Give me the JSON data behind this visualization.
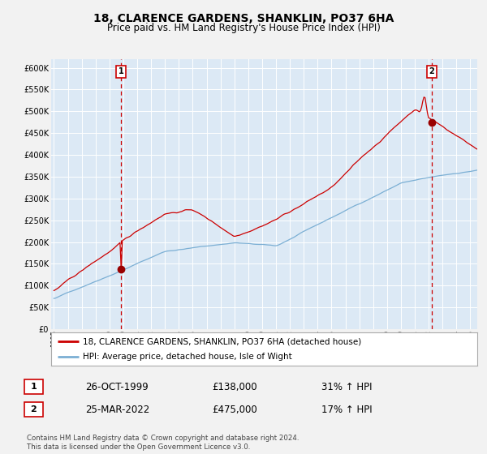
{
  "title": "18, CLARENCE GARDENS, SHANKLIN, PO37 6HA",
  "subtitle": "Price paid vs. HM Land Registry's House Price Index (HPI)",
  "title_fontsize": 10,
  "subtitle_fontsize": 8.5,
  "background_color": "#dce9f5",
  "fig_background": "#f2f2f2",
  "grid_color": "#ffffff",
  "red_line_color": "#cc0000",
  "blue_line_color": "#7bafd4",
  "marker_color": "#990000",
  "dashed_line_color": "#cc0000",
  "annotation_box_color": "#cc0000",
  "ylim": [
    0,
    620000
  ],
  "yticks": [
    0,
    50000,
    100000,
    150000,
    200000,
    250000,
    300000,
    350000,
    400000,
    450000,
    500000,
    550000,
    600000
  ],
  "sale1_date_num": 1999.82,
  "sale1_price": 138000,
  "sale1_label": "1",
  "sale2_date_num": 2022.23,
  "sale2_price": 475000,
  "sale2_label": "2",
  "legend_red_label": "18, CLARENCE GARDENS, SHANKLIN, PO37 6HA (detached house)",
  "legend_blue_label": "HPI: Average price, detached house, Isle of Wight",
  "table_row1": [
    "1",
    "26-OCT-1999",
    "£138,000",
    "31% ↑ HPI"
  ],
  "table_row2": [
    "2",
    "25-MAR-2022",
    "£475,000",
    "17% ↑ HPI"
  ],
  "footer": "Contains HM Land Registry data © Crown copyright and database right 2024.\nThis data is licensed under the Open Government Licence v3.0."
}
